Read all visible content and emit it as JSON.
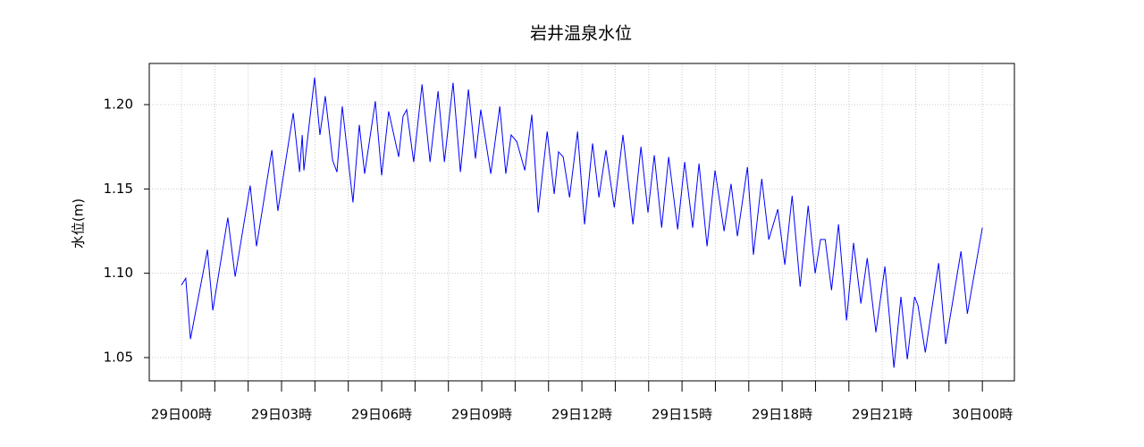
{
  "chart_data": {
    "type": "line",
    "title": "岩井温泉水位",
    "ylabel": "水位(m)",
    "x": [
      0,
      0.13,
      0.27,
      0.78,
      0.94,
      1.39,
      1.61,
      2.06,
      2.25,
      2.71,
      2.89,
      3.35,
      3.54,
      3.62,
      3.67,
      3.99,
      4.15,
      4.31,
      4.53,
      4.66,
      4.82,
      5.14,
      5.33,
      5.49,
      5.81,
      6.0,
      6.21,
      6.51,
      6.64,
      6.75,
      6.96,
      7.21,
      7.45,
      7.69,
      7.88,
      8.14,
      8.36,
      8.6,
      8.81,
      8.97,
      9.27,
      9.54,
      9.72,
      9.88,
      10.05,
      10.29,
      10.5,
      10.69,
      10.96,
      11.17,
      11.3,
      11.44,
      11.63,
      11.87,
      12.08,
      12.32,
      12.51,
      12.72,
      12.97,
      13.23,
      13.53,
      13.77,
      13.98,
      14.17,
      14.39,
      14.6,
      14.87,
      15.08,
      15.32,
      15.51,
      15.75,
      15.99,
      16.26,
      16.47,
      16.66,
      16.96,
      17.14,
      17.39,
      17.6,
      17.87,
      18.08,
      18.3,
      18.54,
      18.78,
      18.99,
      19.15,
      19.29,
      19.48,
      19.69,
      19.93,
      20.14,
      20.36,
      20.55,
      20.81,
      21.08,
      21.35,
      21.56,
      21.75,
      21.97,
      22.07,
      22.29,
      22.69,
      22.9,
      23.36,
      23.55,
      24.0
    ],
    "series": [
      {
        "name": "水位",
        "color": "#0000ff",
        "values": [
          1.093,
          1.097,
          1.061,
          1.114,
          1.078,
          1.133,
          1.098,
          1.152,
          1.116,
          1.173,
          1.137,
          1.195,
          1.16,
          1.182,
          1.161,
          1.216,
          1.182,
          1.205,
          1.167,
          1.16,
          1.199,
          1.142,
          1.188,
          1.159,
          1.202,
          1.158,
          1.196,
          1.169,
          1.193,
          1.197,
          1.166,
          1.212,
          1.166,
          1.208,
          1.166,
          1.213,
          1.16,
          1.209,
          1.168,
          1.197,
          1.159,
          1.199,
          1.159,
          1.182,
          1.178,
          1.161,
          1.194,
          1.136,
          1.184,
          1.147,
          1.172,
          1.169,
          1.145,
          1.184,
          1.129,
          1.177,
          1.145,
          1.173,
          1.139,
          1.182,
          1.129,
          1.175,
          1.136,
          1.17,
          1.127,
          1.169,
          1.126,
          1.166,
          1.127,
          1.165,
          1.116,
          1.161,
          1.125,
          1.153,
          1.122,
          1.163,
          1.111,
          1.156,
          1.12,
          1.138,
          1.105,
          1.146,
          1.092,
          1.14,
          1.1,
          1.12,
          1.12,
          1.09,
          1.129,
          1.072,
          1.118,
          1.082,
          1.109,
          1.065,
          1.104,
          1.044,
          1.086,
          1.049,
          1.086,
          1.081,
          1.053,
          1.106,
          1.058,
          1.113,
          1.076,
          1.127
        ]
      }
    ],
    "xlim": [
      -0.964,
      24.96
    ],
    "ylim": [
      1.0362,
      1.2244
    ],
    "xticks": [
      {
        "value": 0,
        "label": "29日00時"
      },
      {
        "value": 3,
        "label": "29日03時"
      },
      {
        "value": 6,
        "label": "29日06時"
      },
      {
        "value": 9,
        "label": "29日09時"
      },
      {
        "value": 12,
        "label": "29日12時"
      },
      {
        "value": 15,
        "label": "29日15時"
      },
      {
        "value": 18,
        "label": "29日18時"
      },
      {
        "value": 21,
        "label": "29日21時"
      },
      {
        "value": 24,
        "label": "30日00時"
      }
    ],
    "xminorticks": [
      1,
      2,
      4,
      5,
      7,
      8,
      10,
      11,
      13,
      14,
      16,
      17,
      19,
      20,
      22,
      23
    ],
    "yticks": [
      1.05,
      {
        "value": 1.1,
        "label": "1.10"
      },
      1.15,
      {
        "value": 1.2,
        "label": "1.20"
      }
    ],
    "grid": true
  }
}
